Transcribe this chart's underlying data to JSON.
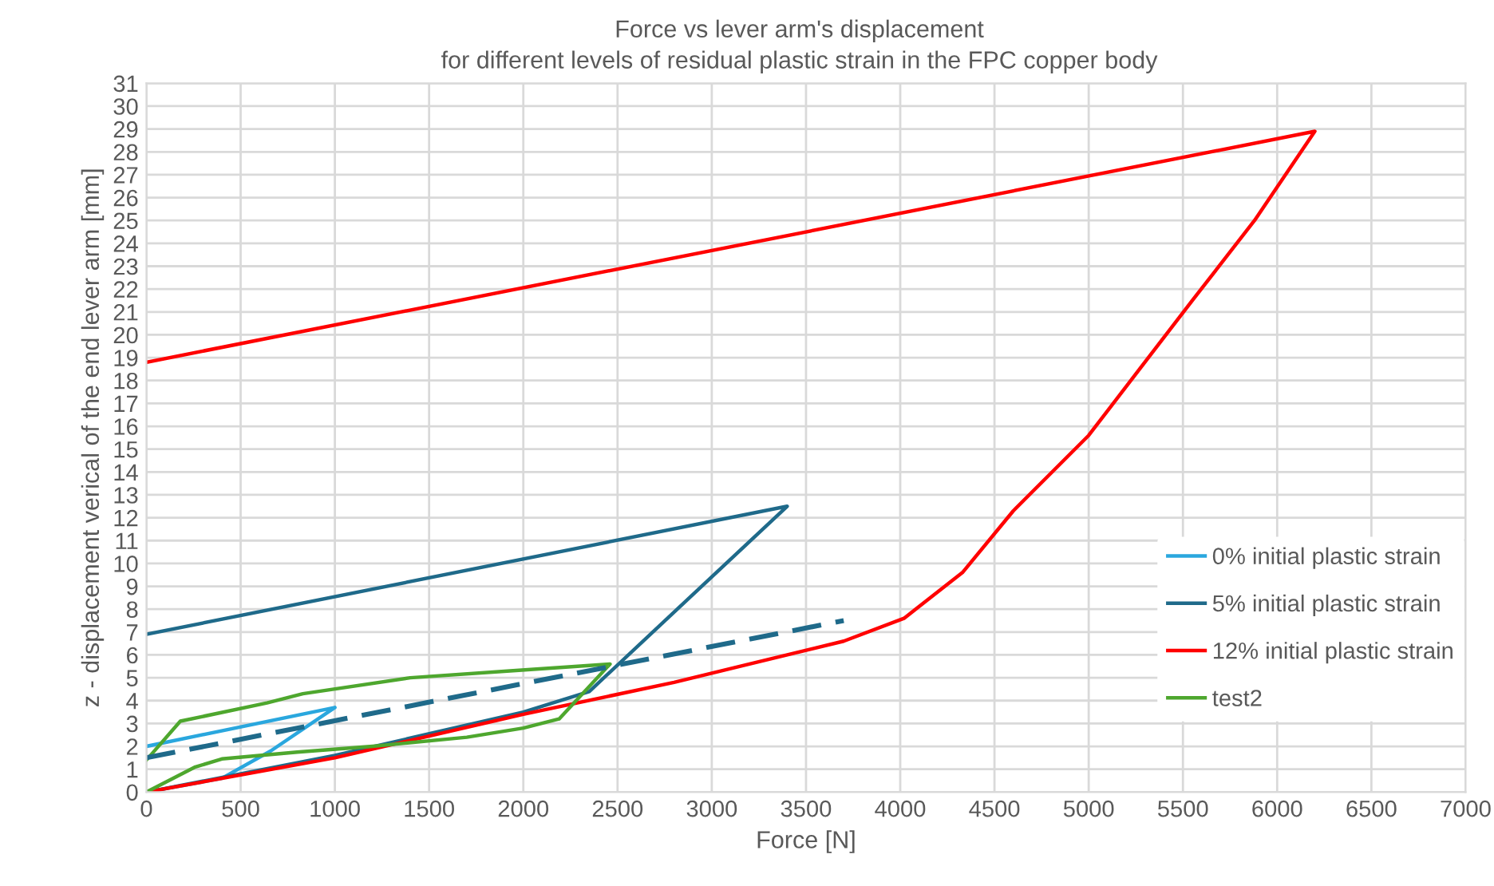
{
  "chart_data": {
    "type": "line",
    "title": "Force vs lever arm's displacement",
    "subtitle": "for different levels of residual plastic strain in the FPC copper body",
    "xlabel": "Force [N]",
    "ylabel": "z - displacement verical of the end lever arm [mm]",
    "xlim": [
      0,
      7000
    ],
    "xticks": [
      0,
      500,
      1000,
      1500,
      2000,
      2500,
      3000,
      3500,
      4000,
      4500,
      5000,
      5500,
      6000,
      6500,
      7000
    ],
    "ylim": [
      0,
      31
    ],
    "yticks": [
      0,
      1,
      2,
      3,
      4,
      5,
      6,
      7,
      8,
      9,
      10,
      11,
      12,
      13,
      14,
      15,
      16,
      17,
      18,
      19,
      20,
      21,
      22,
      23,
      24,
      25,
      26,
      27,
      28,
      29,
      30,
      31
    ],
    "grid": true,
    "legend": "right",
    "marker": "none",
    "series": [
      {
        "name": "0% initial plastic strain",
        "color": "#2aa7de",
        "x": [
          0,
          400,
          660,
          1000,
          0
        ],
        "values": [
          0,
          0.6,
          1.8,
          3.7,
          2.0
        ]
      },
      {
        "name": "5% initial plastic strain",
        "color": "#1f6a8a",
        "x": [
          0,
          1000,
          2000,
          2350,
          3400,
          0
        ],
        "values": [
          0,
          1.6,
          3.5,
          4.4,
          12.5,
          6.9
        ]
      },
      {
        "name": "12% initial plastic strain",
        "color": "#ff0000",
        "x": [
          0,
          1000,
          2000,
          2800,
          3200,
          3700,
          4020,
          4330,
          4600,
          5000,
          5270,
          5550,
          5880,
          6200,
          0
        ],
        "values": [
          0,
          1.5,
          3.4,
          4.8,
          5.6,
          6.6,
          7.6,
          9.6,
          12.3,
          15.6,
          18.5,
          21.5,
          25,
          28.9,
          18.8
        ]
      },
      {
        "name": "test2",
        "color": "#4ea72e",
        "x": [
          0,
          260,
          400,
          800,
          1200,
          1700,
          2000,
          2190,
          2460,
          1930,
          1400,
          830,
          640,
          180,
          0
        ],
        "values": [
          0,
          1.1,
          1.45,
          1.75,
          2.0,
          2.4,
          2.8,
          3.2,
          5.6,
          5.3,
          5.0,
          4.3,
          3.9,
          3.1,
          1.4
        ]
      },
      {
        "color": "#1f6a8a",
        "line_style": "dashed",
        "x": [
          0,
          3700
        ],
        "values": [
          1.5,
          7.5
        ]
      }
    ]
  }
}
